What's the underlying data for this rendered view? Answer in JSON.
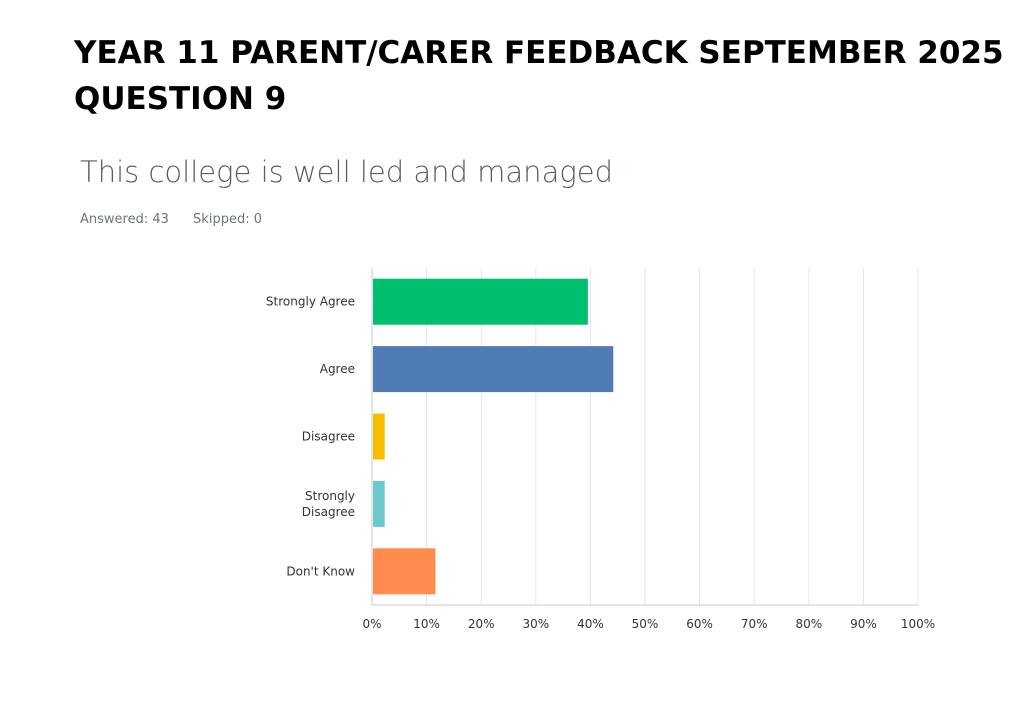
{
  "slide": {
    "title_line1": "YEAR 11 PARENT/CARER FEEDBACK SEPTEMBER 2025",
    "title_line2": "QUESTION 9"
  },
  "question": {
    "title": "This college is well led and managed",
    "answered": "Answered: 43",
    "skipped": "Skipped: 0"
  },
  "chart_data": {
    "type": "bar",
    "orientation": "horizontal",
    "title": "This college is well led and managed",
    "categories": [
      "Strongly Agree",
      "Agree",
      "Disagree",
      "Strongly Disagree",
      "Don't Know"
    ],
    "category_lines": [
      [
        "Strongly Agree"
      ],
      [
        "Agree"
      ],
      [
        "Disagree"
      ],
      [
        "Strongly",
        "Disagree"
      ],
      [
        "Don't Know"
      ]
    ],
    "values": [
      39.53,
      44.19,
      2.33,
      2.33,
      11.63
    ],
    "colors": [
      "#00bf6f",
      "#507cb6",
      "#f9be00",
      "#6bc8cd",
      "#ff8b4f"
    ],
    "xlim": [
      0,
      100
    ],
    "xticks": [
      0,
      10,
      20,
      30,
      40,
      50,
      60,
      70,
      80,
      90,
      100
    ],
    "xtick_labels": [
      "0%",
      "10%",
      "20%",
      "30%",
      "40%",
      "50%",
      "60%",
      "70%",
      "80%",
      "90%",
      "100%"
    ],
    "grid": true,
    "xlabel": "",
    "ylabel": ""
  }
}
